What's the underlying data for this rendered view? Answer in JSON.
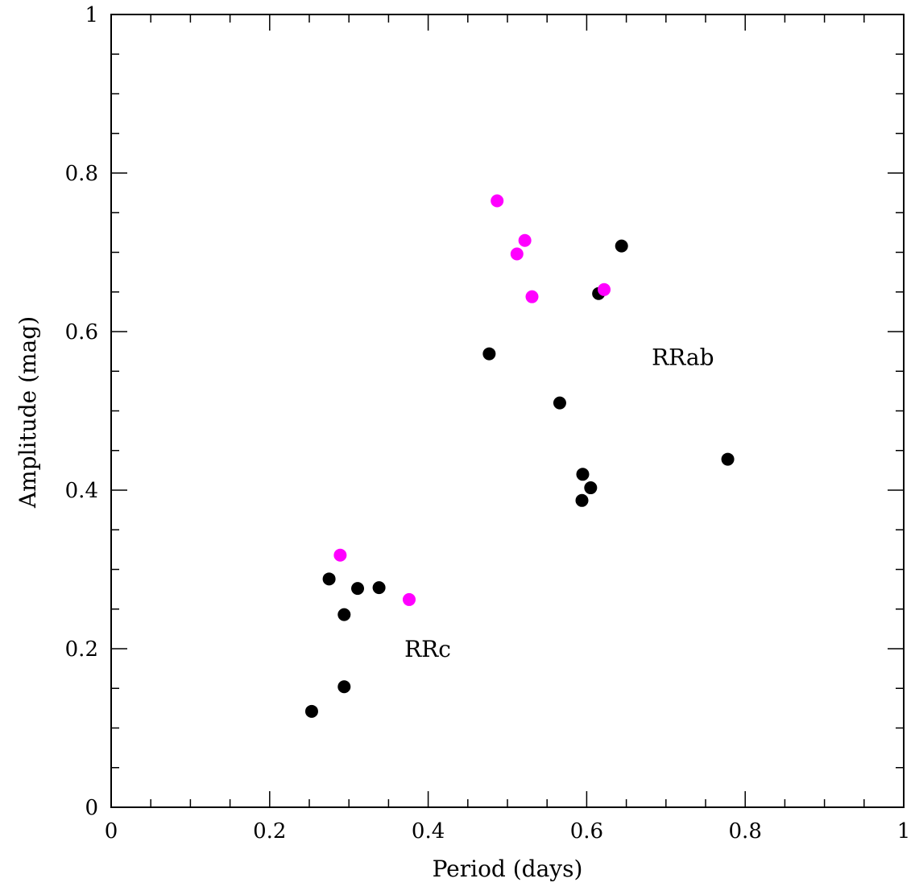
{
  "chart_data": {
    "type": "scatter",
    "xlabel": "Period (days)",
    "ylabel": "Amplitude (mag)",
    "xlim": [
      0,
      1
    ],
    "ylim": [
      0,
      1
    ],
    "x_ticks": [
      "0",
      "0.2",
      "0.4",
      "0.6",
      "0.8",
      "1"
    ],
    "y_ticks": [
      "0",
      "0.2",
      "0.4",
      "0.6",
      "0.8",
      "1"
    ],
    "grid": false,
    "legend": "none",
    "series": [
      {
        "color": "#000000",
        "points": [
          {
            "x": 0.253,
            "y": 0.121
          },
          {
            "x": 0.294,
            "y": 0.152
          },
          {
            "x": 0.294,
            "y": 0.243
          },
          {
            "x": 0.275,
            "y": 0.288
          },
          {
            "x": 0.311,
            "y": 0.276
          },
          {
            "x": 0.338,
            "y": 0.277
          },
          {
            "x": 0.477,
            "y": 0.572
          },
          {
            "x": 0.566,
            "y": 0.51
          },
          {
            "x": 0.595,
            "y": 0.42
          },
          {
            "x": 0.594,
            "y": 0.387
          },
          {
            "x": 0.605,
            "y": 0.403
          },
          {
            "x": 0.615,
            "y": 0.648
          },
          {
            "x": 0.644,
            "y": 0.708
          },
          {
            "x": 0.778,
            "y": 0.439
          }
        ]
      },
      {
        "color": "#ff00ff",
        "points": [
          {
            "x": 0.289,
            "y": 0.318
          },
          {
            "x": 0.376,
            "y": 0.262
          },
          {
            "x": 0.487,
            "y": 0.765
          },
          {
            "x": 0.522,
            "y": 0.715
          },
          {
            "x": 0.512,
            "y": 0.698
          },
          {
            "x": 0.531,
            "y": 0.644
          },
          {
            "x": 0.622,
            "y": 0.653
          }
        ]
      }
    ],
    "annotations": [
      {
        "text": "RRab",
        "x": 0.682,
        "y": 0.558
      },
      {
        "text": "RRc",
        "x": 0.37,
        "y": 0.19
      }
    ]
  }
}
